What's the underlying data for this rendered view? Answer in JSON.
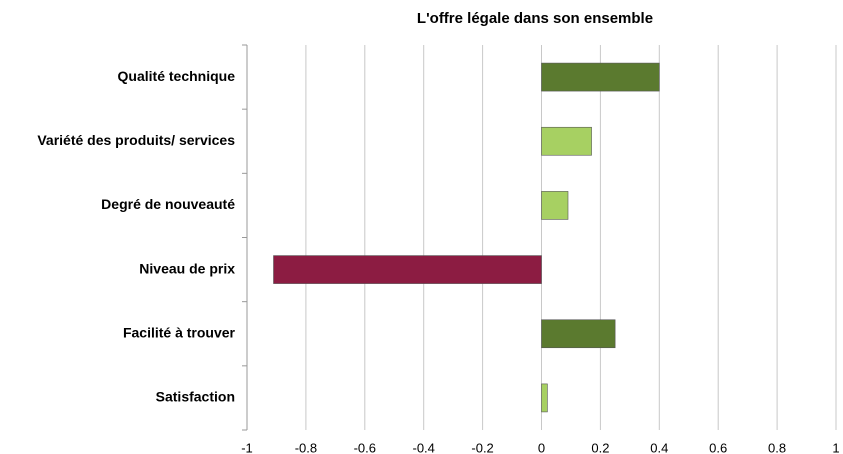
{
  "chart_data": {
    "type": "hbar",
    "title": "L'offre légale dans son ensemble",
    "categories": [
      "Qualité technique",
      "Variété des produits/ services",
      "Degré de nouveauté",
      "Niveau de prix",
      "Facilité à trouver",
      "Satisfaction"
    ],
    "values": [
      0.4,
      0.17,
      0.09,
      -0.91,
      0.25,
      0.02
    ],
    "colors": [
      "#5b7a2f",
      "#a7d062",
      "#a7d062",
      "#8c1c42",
      "#5b7a2f",
      "#a7d062"
    ],
    "xlim": [
      -1,
      1
    ],
    "xticks": [
      -1,
      -0.8,
      -0.6,
      -0.4,
      -0.2,
      0,
      0.2,
      0.4,
      0.6,
      0.8,
      1
    ],
    "grid": true
  }
}
